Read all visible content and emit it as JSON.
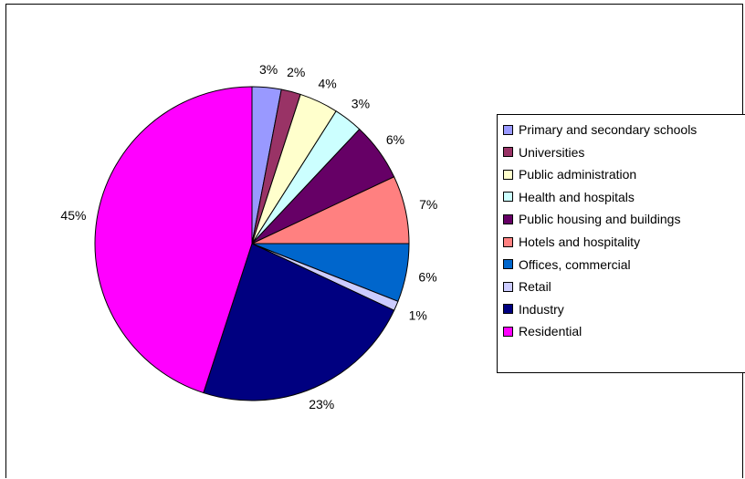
{
  "chart_data": {
    "type": "pie",
    "title": "",
    "categories": [
      "Primary and secondary schools",
      "Universities",
      "Public administration",
      "Health and hospitals",
      "Public housing and buildings",
      "Hotels and hospitality",
      "Offices, commercial",
      "Retail",
      "Industry",
      "Residential"
    ],
    "values": [
      3,
      2,
      4,
      3,
      6,
      7,
      6,
      1,
      23,
      45
    ],
    "labels": [
      "3%",
      "2%",
      "4%",
      "3%",
      "6%",
      "7%",
      "6%",
      "1%",
      "23%",
      "45%"
    ],
    "colors": [
      "#9999ff",
      "#993366",
      "#ffffcc",
      "#ccffff",
      "#660066",
      "#ff8080",
      "#0066cc",
      "#ccccff",
      "#000080",
      "#ff00ff"
    ],
    "legend_position": "right",
    "start_angle": "12 o'clock, clockwise"
  }
}
